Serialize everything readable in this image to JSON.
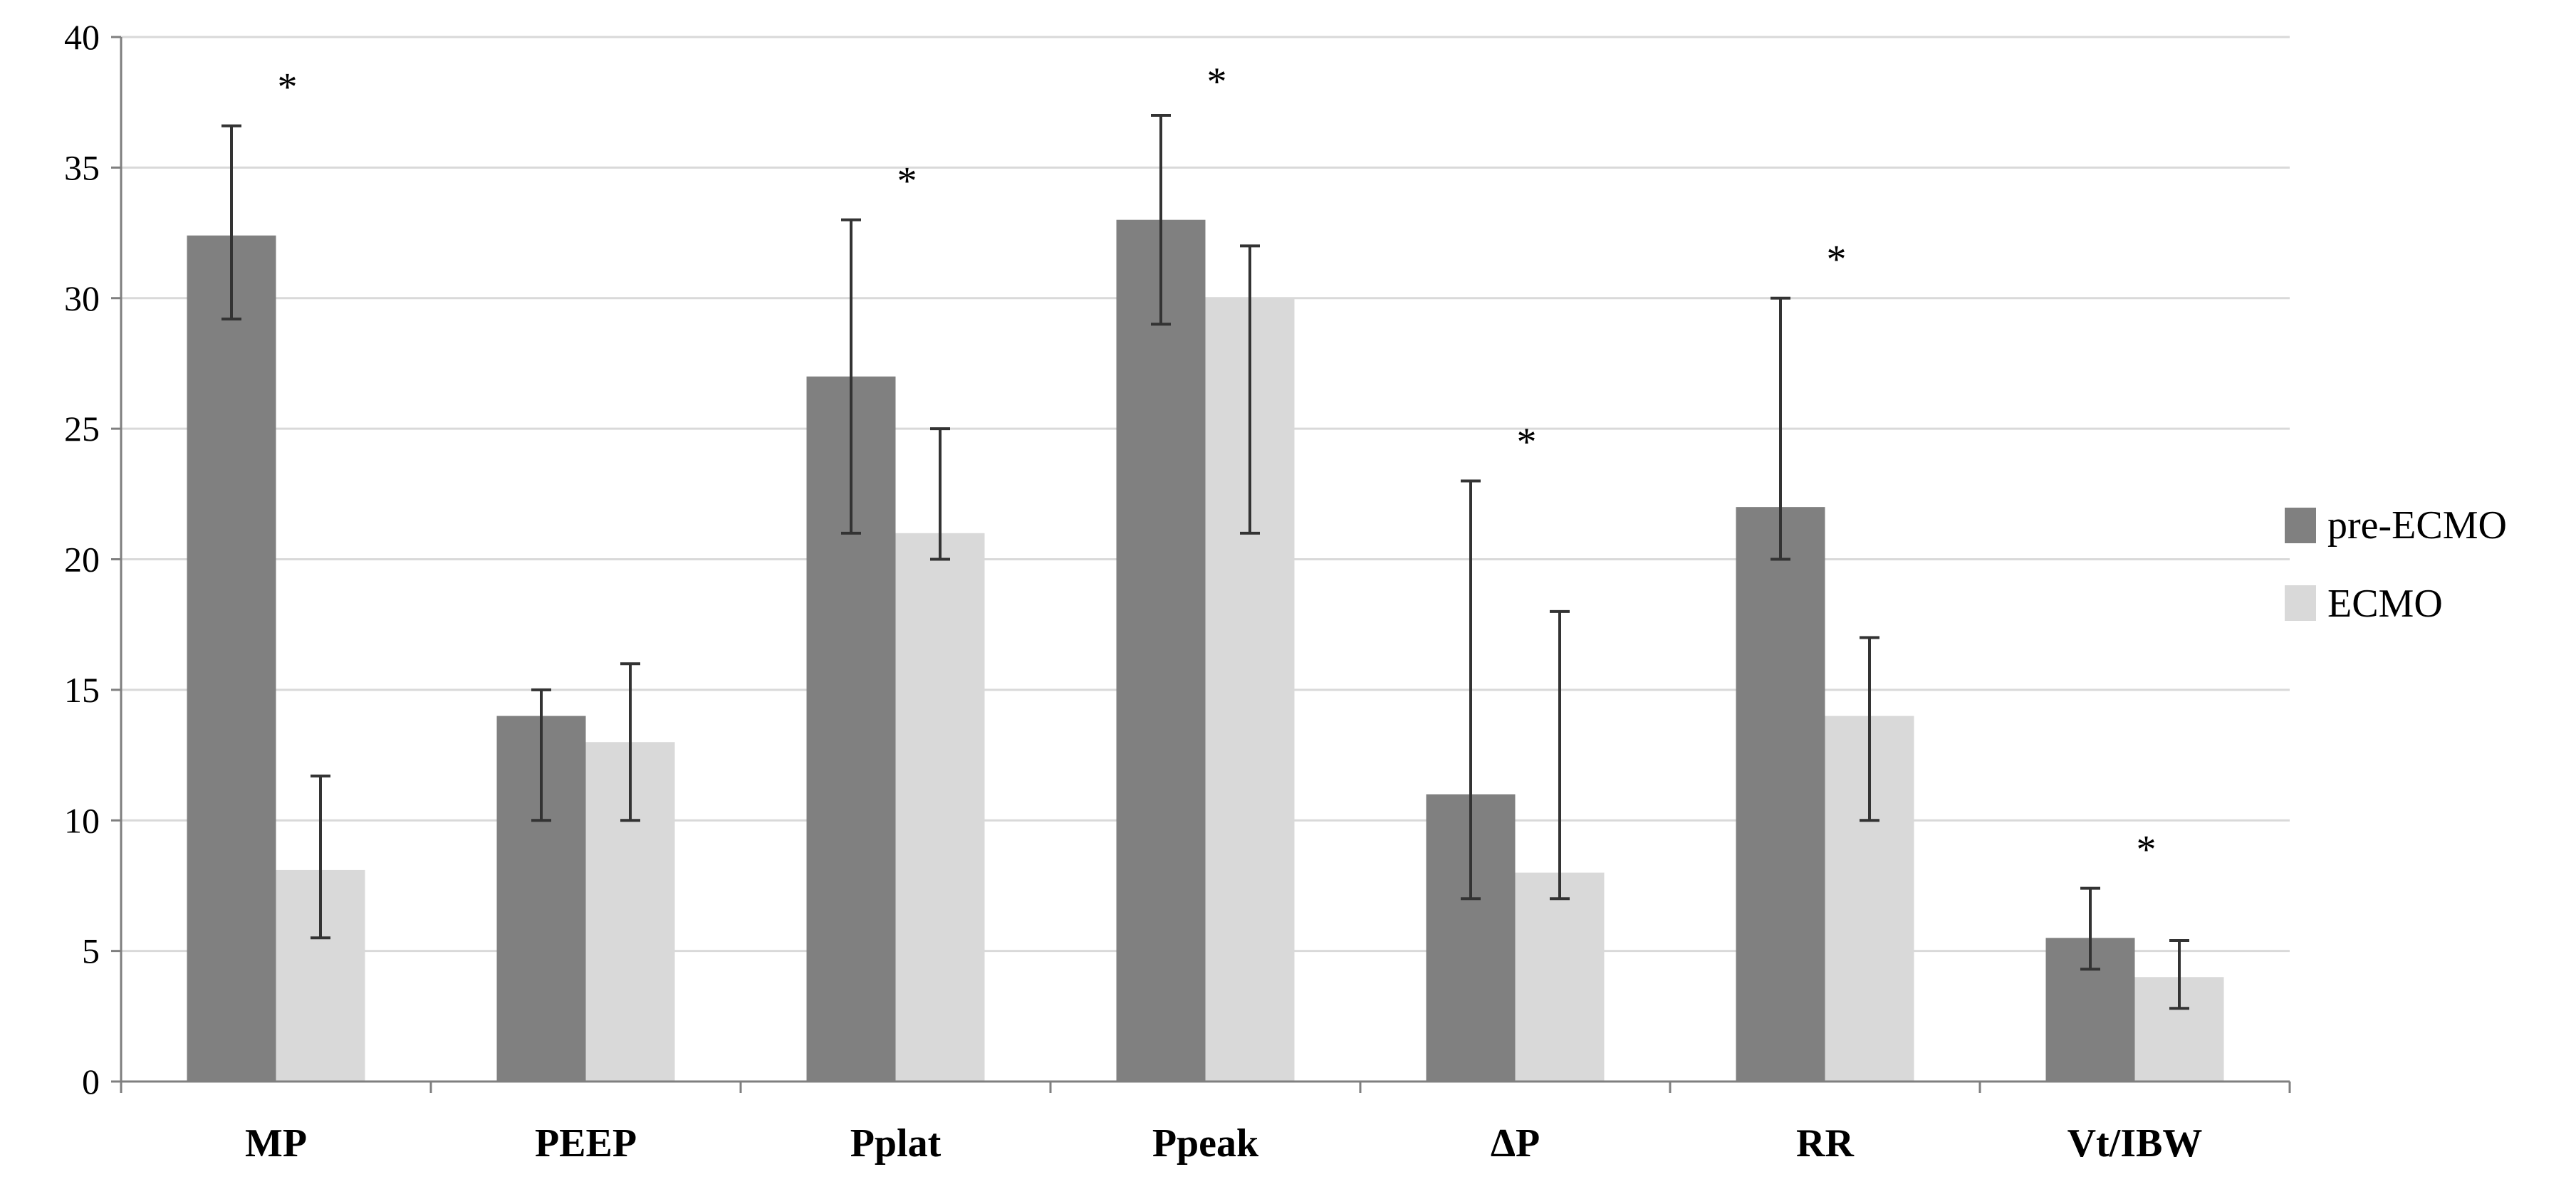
{
  "chart_data": {
    "type": "bar",
    "title": "",
    "xlabel": "",
    "ylabel": "",
    "ylim": [
      0,
      40
    ],
    "yticks": [
      0,
      5,
      10,
      15,
      20,
      25,
      30,
      35,
      40
    ],
    "grid": true,
    "legend_position": "right",
    "categories": [
      "MP",
      "PEEP",
      "Pplat",
      "Ppeak",
      "ΔP",
      "RR",
      "Vt/IBW"
    ],
    "series": [
      {
        "name": "pre-ECMO",
        "color": "#808080",
        "values": [
          32.4,
          14,
          27,
          33,
          11,
          22,
          5.5
        ],
        "err_low": [
          29.2,
          10,
          21,
          29,
          7,
          20,
          4.3
        ],
        "err_high": [
          36.6,
          15,
          33,
          37,
          23,
          30,
          7.4
        ]
      },
      {
        "name": "ECMO",
        "color": "#d9d9d9",
        "values": [
          8.1,
          13,
          21,
          30,
          8,
          14,
          4
        ],
        "err_low": [
          5.5,
          10,
          20,
          21,
          7,
          10,
          2.8
        ],
        "err_high": [
          11.7,
          16,
          25,
          32,
          18,
          17,
          5.4
        ]
      }
    ],
    "annotations": [
      {
        "category": "MP",
        "text": "*",
        "y": 38.3
      },
      {
        "category": "Pplat",
        "text": "*",
        "y": 34.7
      },
      {
        "category": "Ppeak",
        "text": "*",
        "y": 38.5
      },
      {
        "category": "ΔP",
        "text": "*",
        "y": 24.7
      },
      {
        "category": "RR",
        "text": "*",
        "y": 31.7
      },
      {
        "category": "Vt/IBW",
        "text": "*",
        "y": 9.1
      }
    ]
  }
}
